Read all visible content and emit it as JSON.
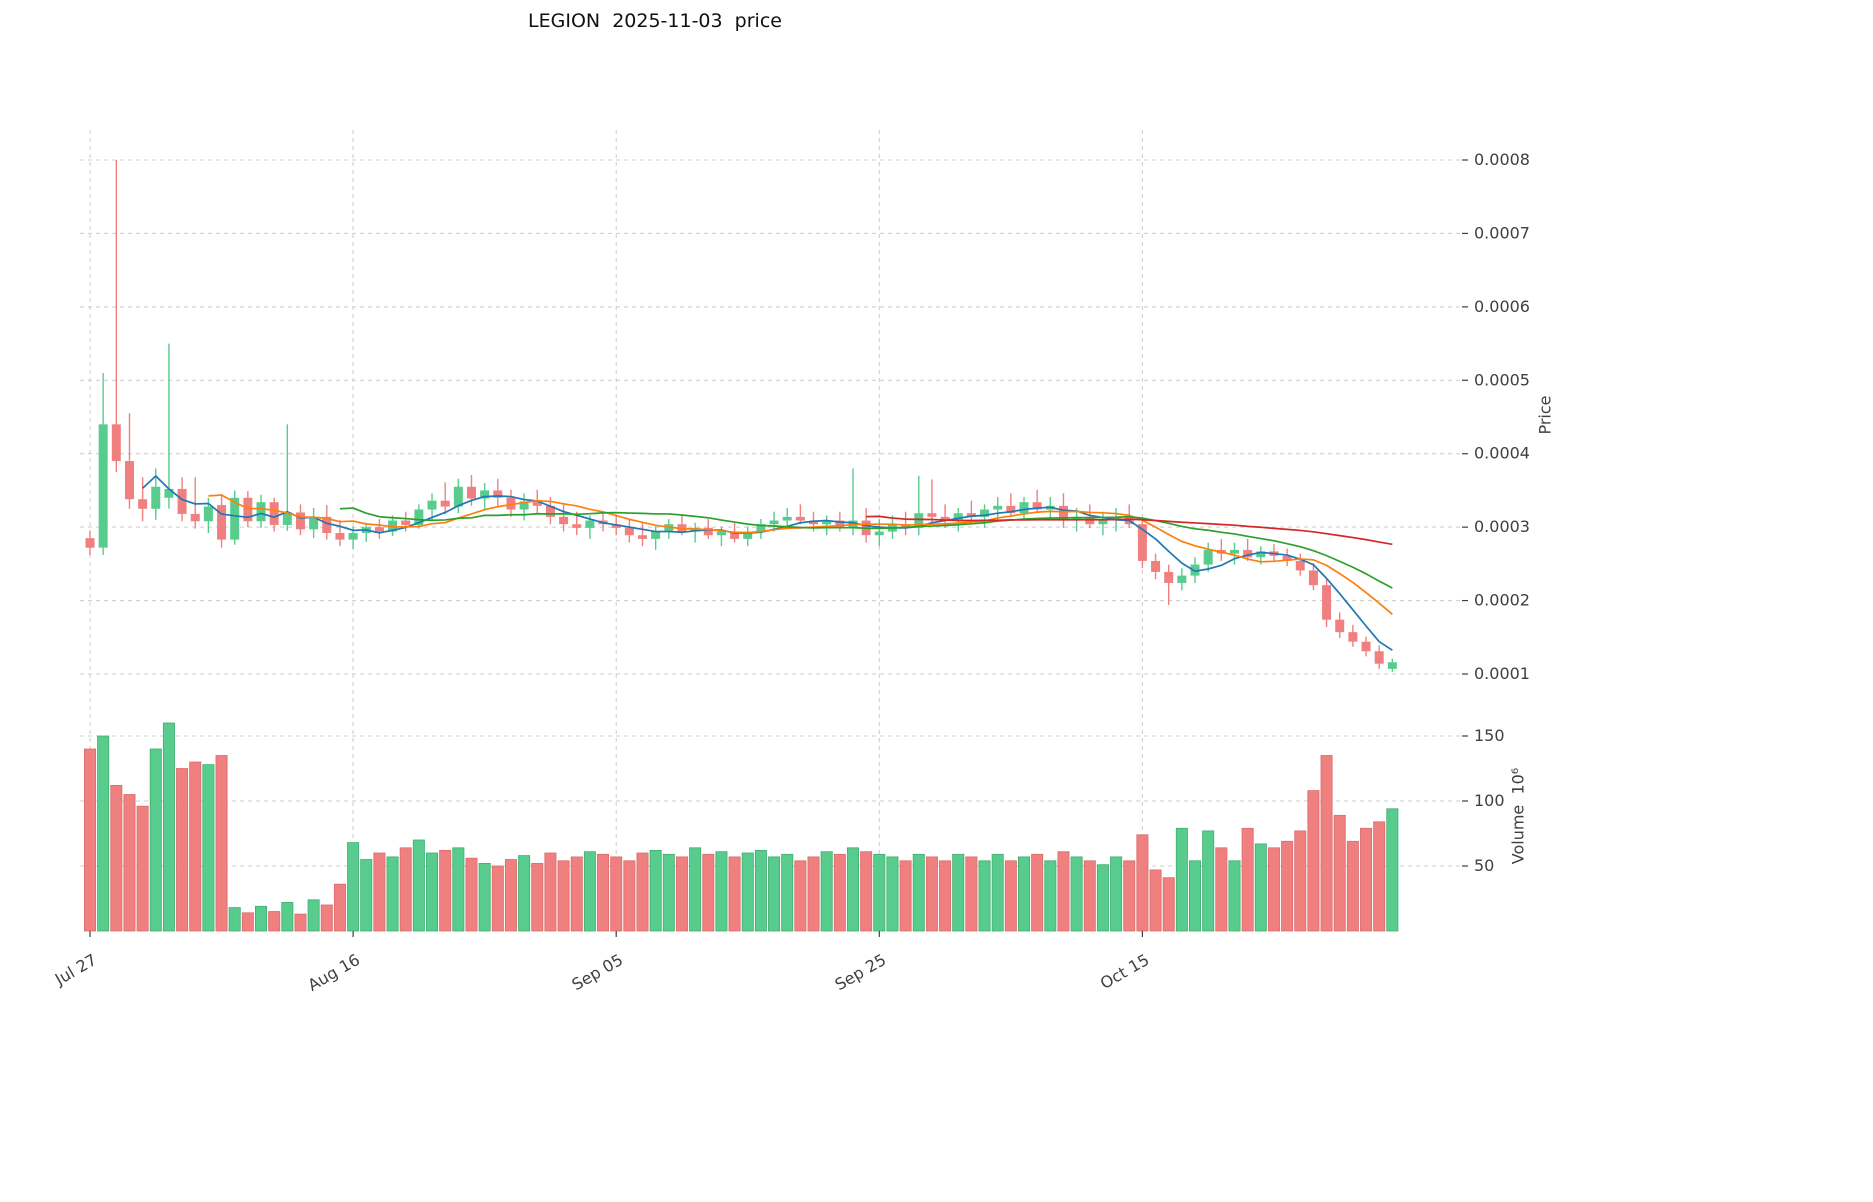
{
  "title": "LEGION  2025-11-03  price",
  "axes": {
    "price": {
      "label": "Price",
      "ticks": [
        0.0001,
        0.0002,
        0.0003,
        0.0004,
        0.0005,
        0.0006,
        0.0007,
        0.0008
      ]
    },
    "volume": {
      "label": "Volume  10⁶",
      "ticks": [
        50,
        100,
        150
      ]
    },
    "x": {
      "tick_indices": [
        0,
        20,
        40,
        60,
        80
      ],
      "tick_labels": [
        "Jul 27",
        "Aug 16",
        "Sep 05",
        "Sep 25",
        "Oct 15"
      ]
    }
  },
  "chart_data": {
    "type": "candlestick",
    "title": "LEGION  2025-11-03  price",
    "x_start_date": "2025-07-27",
    "x_end_date": "2025-11-03",
    "n_points": 100,
    "price_ylim": [
      6e-05,
      0.00084
    ],
    "volume_ylim_millions": [
      0,
      170
    ],
    "legend_position": "none",
    "grid": "dashed",
    "moving_average_windows": [
      5,
      10,
      20,
      60
    ],
    "ohlc_order": [
      "open",
      "high",
      "low",
      "close"
    ],
    "ohlc": [
      [
        0.000285,
        0.000295,
        0.000262,
        0.000272
      ],
      [
        0.000272,
        0.00051,
        0.000262,
        0.00044
      ],
      [
        0.00044,
        0.0008,
        0.000375,
        0.00039
      ],
      [
        0.00039,
        0.000455,
        0.000325,
        0.000338
      ],
      [
        0.000338,
        0.000368,
        0.000308,
        0.000325
      ],
      [
        0.000325,
        0.00038,
        0.00031,
        0.000355
      ],
      [
        0.00034,
        0.00055,
        0.000325,
        0.000352
      ],
      [
        0.000352,
        0.000368,
        0.000308,
        0.000318
      ],
      [
        0.000318,
        0.000368,
        0.000298,
        0.000308
      ],
      [
        0.000308,
        0.00034,
        0.000292,
        0.000328
      ],
      [
        0.00033,
        0.000345,
        0.000272,
        0.000283
      ],
      [
        0.000283,
        0.00035,
        0.000276,
        0.00034
      ],
      [
        0.00034,
        0.000349,
        0.0003,
        0.000308
      ],
      [
        0.000308,
        0.000344,
        0.000299,
        0.000334
      ],
      [
        0.000334,
        0.00034,
        0.000294,
        0.000303
      ],
      [
        0.000303,
        0.00044,
        0.000295,
        0.00032
      ],
      [
        0.00032,
        0.000331,
        0.000289,
        0.000297
      ],
      [
        0.000297,
        0.000326,
        0.000285,
        0.000314
      ],
      [
        0.000314,
        0.00033,
        0.000283,
        0.000292
      ],
      [
        0.000292,
        0.00031,
        0.000274,
        0.000283
      ],
      [
        0.000283,
        0.000301,
        0.00027,
        0.000292
      ],
      [
        0.000292,
        0.000306,
        0.00028,
        0.0003
      ],
      [
        0.0003,
        0.000311,
        0.000284,
        0.000294
      ],
      [
        0.000294,
        0.000316,
        0.000288,
        0.000309
      ],
      [
        0.000309,
        0.000321,
        0.000294,
        0.000303
      ],
      [
        0.000303,
        0.000331,
        0.000298,
        0.000324
      ],
      [
        0.000324,
        0.000346,
        0.000309,
        0.000336
      ],
      [
        0.000336,
        0.000361,
        0.000318,
        0.000328
      ],
      [
        0.000328,
        0.000366,
        0.000319,
        0.000355
      ],
      [
        0.000355,
        0.000371,
        0.000329,
        0.000339
      ],
      [
        0.000339,
        0.00036,
        0.000324,
        0.00035
      ],
      [
        0.00035,
        0.000366,
        0.000329,
        0.00034
      ],
      [
        0.00034,
        0.000351,
        0.000314,
        0.000324
      ],
      [
        0.000324,
        0.000346,
        0.000309,
        0.000335
      ],
      [
        0.000335,
        0.000351,
        0.000319,
        0.000329
      ],
      [
        0.000329,
        0.000341,
        0.000304,
        0.000314
      ],
      [
        0.000314,
        0.000331,
        0.000294,
        0.000304
      ],
      [
        0.000304,
        0.000321,
        0.000289,
        0.000299
      ],
      [
        0.000299,
        0.000316,
        0.000284,
        0.000309
      ],
      [
        0.000309,
        0.000321,
        0.000294,
        0.000304
      ],
      [
        0.000304,
        0.000316,
        0.000289,
        0.000299
      ],
      [
        0.000299,
        0.000311,
        0.000279,
        0.000289
      ],
      [
        0.000289,
        0.000306,
        0.000274,
        0.000284
      ],
      [
        0.000284,
        0.000301,
        0.000269,
        0.000294
      ],
      [
        0.000294,
        0.000311,
        0.000284,
        0.000304
      ],
      [
        0.000304,
        0.000316,
        0.000289,
        0.000294
      ],
      [
        0.000294,
        0.000306,
        0.000279,
        0.000299
      ],
      [
        0.000299,
        0.000311,
        0.000284,
        0.000289
      ],
      [
        0.000289,
        0.000301,
        0.000274,
        0.000294
      ],
      [
        0.000294,
        0.000306,
        0.000279,
        0.000284
      ],
      [
        0.000284,
        0.000301,
        0.000274,
        0.000294
      ],
      [
        0.000294,
        0.000311,
        0.000284,
        0.000304
      ],
      [
        0.000304,
        0.000321,
        0.000294,
        0.000309
      ],
      [
        0.000309,
        0.000326,
        0.000299,
        0.000314
      ],
      [
        0.000314,
        0.000331,
        0.000304,
        0.000309
      ],
      [
        0.000309,
        0.000321,
        0.000294,
        0.000304
      ],
      [
        0.000304,
        0.000316,
        0.000289,
        0.000309
      ],
      [
        0.000309,
        0.000321,
        0.000294,
        0.000299
      ],
      [
        0.000299,
        0.00038,
        0.000289,
        0.000309
      ],
      [
        0.000309,
        0.000326,
        0.000279,
        0.000289
      ],
      [
        0.000289,
        0.000311,
        0.000274,
        0.000294
      ],
      [
        0.000294,
        0.000316,
        0.000284,
        0.000304
      ],
      [
        0.000304,
        0.000321,
        0.000289,
        0.000299
      ],
      [
        0.000299,
        0.00037,
        0.000289,
        0.000319
      ],
      [
        0.000319,
        0.000365,
        0.000304,
        0.000314
      ],
      [
        0.000314,
        0.000331,
        0.000299,
        0.000309
      ],
      [
        0.000309,
        0.000326,
        0.000294,
        0.000319
      ],
      [
        0.000319,
        0.000336,
        0.000304,
        0.000314
      ],
      [
        0.000314,
        0.000331,
        0.000299,
        0.000324
      ],
      [
        0.000324,
        0.000341,
        0.000309,
        0.000329
      ],
      [
        0.000329,
        0.000346,
        0.000314,
        0.000319
      ],
      [
        0.000319,
        0.000341,
        0.000309,
        0.000334
      ],
      [
        0.000334,
        0.000351,
        0.000319,
        0.000324
      ],
      [
        0.000324,
        0.000341,
        0.000309,
        0.000329
      ],
      [
        0.000329,
        0.000346,
        0.000299,
        0.000309
      ],
      [
        0.000309,
        0.000326,
        0.000294,
        0.000314
      ],
      [
        0.000314,
        0.000331,
        0.000299,
        0.000304
      ],
      [
        0.000304,
        0.000321,
        0.000289,
        0.000309
      ],
      [
        0.000309,
        0.000326,
        0.000294,
        0.000314
      ],
      [
        0.000314,
        0.000331,
        0.000299,
        0.000304
      ],
      [
        0.000304,
        0.000311,
        0.000244,
        0.000254
      ],
      [
        0.000254,
        0.000264,
        0.000229,
        0.000239
      ],
      [
        0.000239,
        0.000249,
        0.000194,
        0.000224
      ],
      [
        0.000224,
        0.000244,
        0.000214,
        0.000234
      ],
      [
        0.000234,
        0.000259,
        0.000224,
        0.000249
      ],
      [
        0.000249,
        0.000279,
        0.000239,
        0.000269
      ],
      [
        0.000269,
        0.000284,
        0.000254,
        0.000264
      ],
      [
        0.000264,
        0.000279,
        0.000249,
        0.000269
      ],
      [
        0.000269,
        0.000284,
        0.000254,
        0.000259
      ],
      [
        0.000259,
        0.000274,
        0.000249,
        0.000267
      ],
      [
        0.000267,
        0.000277,
        0.000254,
        0.000261
      ],
      [
        0.000261,
        0.000271,
        0.000247,
        0.000254
      ],
      [
        0.000254,
        0.000264,
        0.000234,
        0.000241
      ],
      [
        0.000241,
        0.000251,
        0.000214,
        0.000221
      ],
      [
        0.000221,
        0.000229,
        0.000164,
        0.000174
      ],
      [
        0.000174,
        0.000184,
        0.000149,
        0.000157
      ],
      [
        0.000157,
        0.000167,
        0.000137,
        0.000144
      ],
      [
        0.000144,
        0.000151,
        0.000124,
        0.000131
      ],
      [
        0.000131,
        0.000139,
        0.000107,
        0.000114
      ],
      [
        0.000107,
        0.000121,
        0.000103,
        0.000116
      ]
    ],
    "volume_millions": [
      140,
      150,
      112,
      105,
      96,
      140,
      160,
      125,
      130,
      128,
      135,
      18,
      14,
      19,
      15,
      22,
      13,
      24,
      20,
      36,
      68,
      55,
      60,
      57,
      64,
      70,
      60,
      62,
      64,
      56,
      52,
      50,
      55,
      58,
      52,
      60,
      54,
      57,
      61,
      59,
      57,
      54,
      60,
      62,
      59,
      57,
      64,
      59,
      61,
      57,
      60,
      62,
      57,
      59,
      54,
      57,
      61,
      59,
      64,
      61,
      59,
      57,
      54,
      59,
      57,
      54,
      59,
      57,
      54,
      59,
      54,
      57,
      59,
      54,
      61,
      57,
      54,
      51,
      57,
      54,
      74,
      47,
      41,
      79,
      54,
      77,
      64,
      54,
      79,
      67,
      64,
      69,
      77,
      108,
      135,
      89,
      69,
      79,
      84,
      94
    ],
    "colors": {
      "up": "#58cc8c",
      "down": "#f08080",
      "up_edge": "#3fae72",
      "down_edge": "#da6c6c",
      "ma": [
        "#1f77b4",
        "#ff7f0e",
        "#2ca02c",
        "#d62728"
      ],
      "grid": "#cccccc",
      "text": "#3f3f3f"
    }
  }
}
